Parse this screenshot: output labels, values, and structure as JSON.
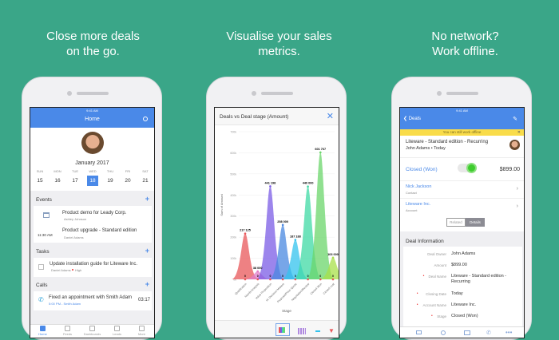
{
  "headlines": [
    "Close more deals\non the go.",
    "Visualise your sales\nmetrics.",
    "No network?\nWork offline."
  ],
  "status_time": "9:41 AM",
  "home": {
    "title": "Home",
    "month": "January 2017",
    "days": [
      {
        "d": "SUN",
        "n": "15"
      },
      {
        "d": "MON",
        "n": "16"
      },
      {
        "d": "TUE",
        "n": "17"
      },
      {
        "d": "WED",
        "n": "18"
      },
      {
        "d": "THU",
        "n": "19"
      },
      {
        "d": "FRI",
        "n": "20"
      },
      {
        "d": "SAT",
        "n": "21"
      }
    ],
    "events_label": "Events",
    "events": [
      {
        "time": "",
        "title": "Product demo for Leady Corp.",
        "person": "Ashley Johnson"
      },
      {
        "time": "11:30 AM",
        "title": "Product upgrade - Standard edition",
        "person": "Daniel Adams"
      }
    ],
    "tasks_label": "Tasks",
    "task": {
      "title": "Update installation guide for Liteware Inc.",
      "person": "Daniel Adams",
      "priority": "High"
    },
    "calls_label": "Calls",
    "call": {
      "title": "Fixed an appointment with Smith Adam",
      "sub": "5:00 PM - Smith Adam",
      "duration": "03:17"
    },
    "tabs": [
      "Home",
      "Feeds",
      "Dashboards",
      "Leads",
      "More"
    ]
  },
  "chart_data": {
    "type": "area",
    "title": "Deals vs Deal stage (Amount)",
    "xlabel": "Stage",
    "ylabel": "Sum of Amount",
    "ylim": [
      0,
      700000
    ],
    "yticks": [
      "0k",
      "100k",
      "200k",
      "300k",
      "400k",
      "500k",
      "600k",
      "700k"
    ],
    "categories": [
      "Qualification",
      "Needs Analysis",
      "Value Proposition",
      "Id. Decision Makers",
      "Proposal/Price Quote",
      "Negotiation/Review",
      "Closed Won",
      "Closed Lost"
    ],
    "values": [
      217125,
      38000,
      441198,
      258000,
      187188,
      440000,
      601767,
      103000
    ],
    "labels": [
      "217 125",
      "38 000",
      "441 198",
      "258 000",
      "187 188",
      "440 000",
      "601 767",
      "103 000"
    ],
    "colors": [
      "#e8575a",
      "#e07cc8",
      "#7b5ce6",
      "#4a88e0",
      "#33c3ee",
      "#3fd9a4",
      "#6bd66b",
      "#a8e04a"
    ],
    "grid": true
  },
  "deal": {
    "back_label": "Deals",
    "offline_banner": "You can still work offline",
    "title": "Liteware - Standard edition - Recurring",
    "sub": "John Adams  • Today",
    "stage": "Closed (Won)",
    "amount": "$899.00",
    "contact": {
      "name": "Nick Jackson",
      "type": "Contact"
    },
    "account": {
      "name": "Liteware Inc.",
      "type": "Account"
    },
    "seg": [
      "Related",
      "Details"
    ],
    "info_title": "Deal Information",
    "fields": [
      {
        "k": "Deal Owner",
        "v": "John Adams",
        "req": false
      },
      {
        "k": "Amount",
        "v": "$899.00",
        "req": false
      },
      {
        "k": "Deal Name",
        "v": "Liteware - Standard edition -\nRecurring",
        "req": true
      },
      {
        "k": "Closing Date",
        "v": "Today",
        "req": true
      },
      {
        "k": "Account Name",
        "v": "Liteware Inc.",
        "req": true
      },
      {
        "k": "Stage",
        "v": "Closed (Won)",
        "req": true
      }
    ]
  }
}
